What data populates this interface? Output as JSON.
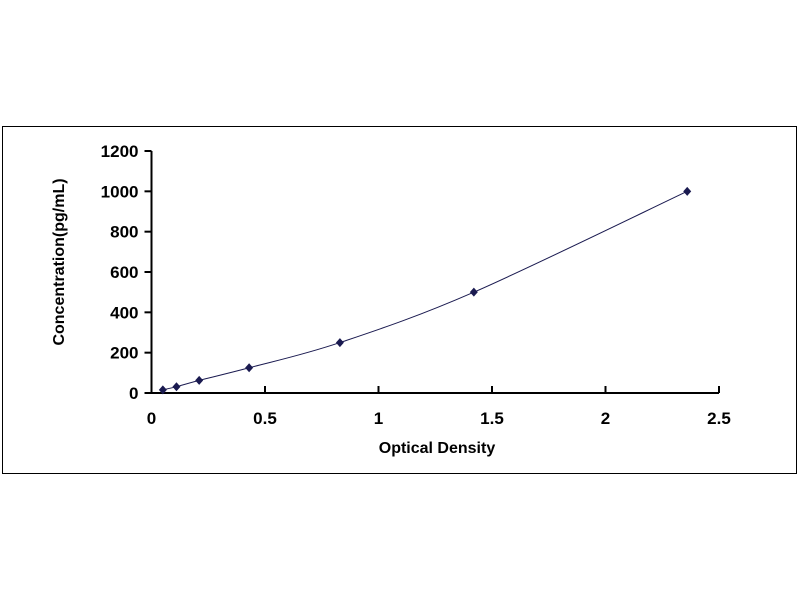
{
  "chart_data": {
    "type": "scatter",
    "title": "",
    "xlabel": "Optical Density",
    "ylabel": "Concentration(pg/mL)",
    "xlim": [
      0,
      2.5
    ],
    "ylim": [
      0,
      1200
    ],
    "xticks": [
      "0",
      "0.5",
      "1",
      "1.5",
      "2",
      "2.5"
    ],
    "yticks": [
      "0",
      "200",
      "400",
      "600",
      "800",
      "1000",
      "1200"
    ],
    "grid": false,
    "trendline": "smooth curve through points",
    "marker": "diamond",
    "series": [
      {
        "color": "#1a1a50",
        "points": [
          {
            "x": 0.05,
            "y": 15.6
          },
          {
            "x": 0.11,
            "y": 31.25
          },
          {
            "x": 0.21,
            "y": 62.5
          },
          {
            "x": 0.43,
            "y": 125
          },
          {
            "x": 0.83,
            "y": 250
          },
          {
            "x": 1.42,
            "y": 500
          },
          {
            "x": 2.36,
            "y": 1000
          }
        ]
      }
    ]
  }
}
